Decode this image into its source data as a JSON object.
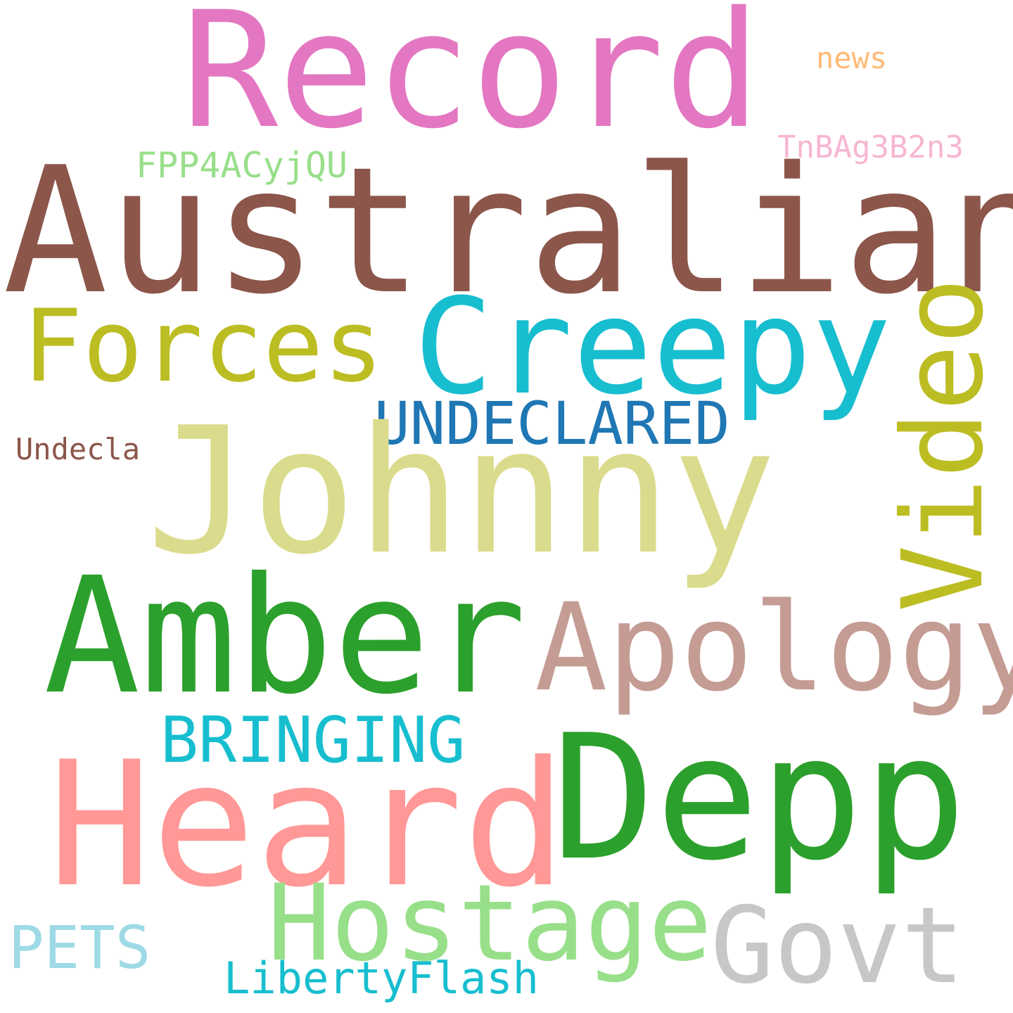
{
  "words": [
    {
      "key": "record",
      "text": "Record",
      "color": "#e377c2"
    },
    {
      "key": "news",
      "text": "news",
      "color": "#ffbb78"
    },
    {
      "key": "tnbag",
      "text": "TnBAg3B2n3",
      "color": "#f7b6d2"
    },
    {
      "key": "fpp",
      "text": "FPP4ACyjQU",
      "color": "#98df8a"
    },
    {
      "key": "australian",
      "text": "Australian",
      "color": "#8c564b"
    },
    {
      "key": "forces",
      "text": "Forces",
      "color": "#bcbd22"
    },
    {
      "key": "creepy",
      "text": "Creepy",
      "color": "#17becf"
    },
    {
      "key": "undeclared",
      "text": "UNDECLARED",
      "color": "#1f77b4"
    },
    {
      "key": "undecla",
      "text": "Undecla",
      "color": "#8c564b"
    },
    {
      "key": "johnny",
      "text": "Johnny",
      "color": "#dbdb8d"
    },
    {
      "key": "video",
      "text": "Video",
      "color": "#bcbd22"
    },
    {
      "key": "amber",
      "text": "Amber",
      "color": "#2ca02c"
    },
    {
      "key": "apology",
      "text": "Apology",
      "color": "#c49c94"
    },
    {
      "key": "bringing",
      "text": "BRINGING",
      "color": "#17becf"
    },
    {
      "key": "heard",
      "text": "Heard",
      "color": "#ff9896"
    },
    {
      "key": "depp",
      "text": "Depp",
      "color": "#2ca02c"
    },
    {
      "key": "pets",
      "text": "PETS",
      "color": "#9edae5"
    },
    {
      "key": "hostage",
      "text": "Hostage",
      "color": "#98df8a"
    },
    {
      "key": "govt",
      "text": "Govt",
      "color": "#c7c7c7"
    },
    {
      "key": "libertyflash",
      "text": "LibertyFlash",
      "color": "#17becf"
    }
  ]
}
